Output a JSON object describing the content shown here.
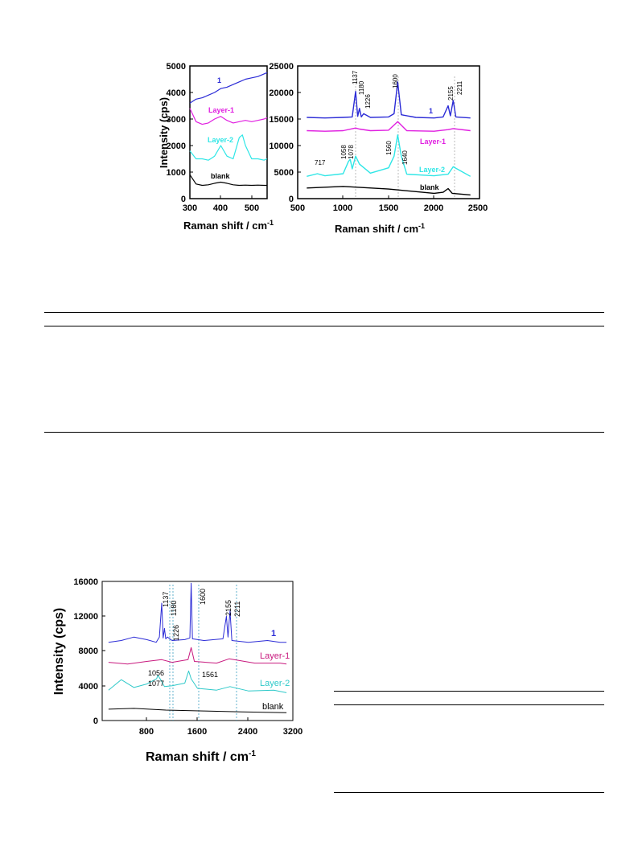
{
  "charts": {
    "top_left": {
      "ylabel": "Intensity (cps)",
      "xlabel": "Raman shift / cm",
      "xlabel_sup": "-1",
      "xlim": [
        300,
        550
      ],
      "ylim": [
        0,
        5000
      ],
      "xticks": [
        "300",
        "400",
        "500"
      ],
      "yticks": [
        "0",
        "1000",
        "2000",
        "3000",
        "4000",
        "5000"
      ],
      "labels": {
        "s1": "1",
        "layer1": "Layer-1",
        "layer2": "Layer-2",
        "blank": "blank"
      }
    },
    "top_right": {
      "xlabel": "Raman shift / cm",
      "xlabel_sup": "-1",
      "xlim": [
        500,
        2500
      ],
      "ylim": [
        0,
        25000
      ],
      "xticks": [
        "500",
        "1000",
        "1500",
        "2000",
        "2500"
      ],
      "yticks": [
        "0",
        "5000",
        "10000",
        "15000",
        "20000",
        "25000"
      ],
      "peak_labels": [
        "1137",
        "1180",
        "1226",
        "1600",
        "2155",
        "2211",
        "717",
        "1058",
        "1078",
        "1560",
        "1640"
      ],
      "labels": {
        "s1": "1",
        "layer1": "Layer-1",
        "layer2": "Layer-2",
        "blank": "blank"
      }
    },
    "bottom": {
      "ylabel": "Intensity (cps)",
      "xlabel": "Raman shift / cm",
      "xlabel_sup": "-1",
      "xlim": [
        200,
        3200
      ],
      "ylim": [
        0,
        16000
      ],
      "xticks": [
        "800",
        "1600",
        "2400",
        "3200"
      ],
      "yticks": [
        "0",
        "4000",
        "8000",
        "12000",
        "16000"
      ],
      "peak_labels": [
        "1137",
        "1180",
        "1226",
        "1600",
        "2155",
        "2211",
        "1056",
        "1077",
        "1561"
      ],
      "labels": {
        "s1": "1",
        "layer1": "Layer-1",
        "layer2": "Layer-2",
        "blank": "blank"
      }
    }
  },
  "chart_data": [
    {
      "type": "line",
      "xlabel": "Raman shift / cm-1",
      "ylabel": "Intensity (cps)",
      "xlim": [
        300,
        550
      ],
      "ylim": [
        0,
        5000
      ],
      "colors": {
        "1": "#2b2bd6",
        "Layer-1": "#e01ee0",
        "Layer-2": "#2ee6e6",
        "blank": "#000000"
      },
      "series": [
        {
          "name": "1",
          "x": [
            300,
            320,
            340,
            360,
            380,
            400,
            420,
            440,
            460,
            480,
            500,
            520,
            540,
            550
          ],
          "y": [
            3600,
            3750,
            3800,
            3900,
            4000,
            4150,
            4200,
            4300,
            4400,
            4500,
            4550,
            4600,
            4700,
            4750
          ]
        },
        {
          "name": "Layer-1",
          "x": [
            300,
            320,
            340,
            360,
            380,
            400,
            420,
            440,
            460,
            480,
            500,
            520,
            540,
            550
          ],
          "y": [
            3400,
            2900,
            2800,
            2850,
            3000,
            3100,
            2950,
            2850,
            2900,
            2950,
            2900,
            2950,
            3000,
            3050
          ]
        },
        {
          "name": "Layer-2",
          "x": [
            300,
            320,
            340,
            360,
            380,
            400,
            420,
            440,
            460,
            470,
            480,
            500,
            520,
            540,
            550
          ],
          "y": [
            1800,
            1500,
            1500,
            1450,
            1600,
            2000,
            1600,
            1500,
            2300,
            2400,
            2000,
            1500,
            1500,
            1450,
            1500
          ]
        },
        {
          "name": "blank",
          "x": [
            300,
            320,
            340,
            360,
            380,
            400,
            420,
            440,
            460,
            480,
            500,
            520,
            540,
            550
          ],
          "y": [
            900,
            550,
            500,
            520,
            580,
            620,
            580,
            520,
            500,
            510,
            500,
            510,
            500,
            500
          ]
        }
      ],
      "annotations": [
        "1",
        "Layer-1",
        "Layer-2",
        "blank"
      ]
    },
    {
      "type": "line",
      "xlabel": "Raman shift / cm-1",
      "xlim": [
        500,
        2500
      ],
      "ylim": [
        0,
        25000
      ],
      "colors": {
        "1": "#2b2bd6",
        "Layer-1": "#e01ee0",
        "Layer-2": "#2ee6e6",
        "blank": "#000000"
      },
      "series": [
        {
          "name": "1",
          "x": [
            600,
            800,
            1000,
            1100,
            1137,
            1160,
            1180,
            1200,
            1226,
            1300,
            1500,
            1560,
            1600,
            1640,
            1800,
            2000,
            2100,
            2155,
            2180,
            2211,
            2240,
            2400
          ],
          "y": [
            15300,
            15200,
            15300,
            15400,
            20200,
            15500,
            17000,
            15400,
            16000,
            15300,
            15400,
            16000,
            22000,
            15800,
            15300,
            15200,
            15400,
            17500,
            15600,
            18500,
            15400,
            15200
          ]
        },
        {
          "name": "Layer-1",
          "x": [
            600,
            800,
            1000,
            1137,
            1180,
            1300,
            1500,
            1600,
            1700,
            2000,
            2155,
            2211,
            2400
          ],
          "y": [
            12800,
            12700,
            12800,
            13300,
            13100,
            12800,
            12900,
            14500,
            12800,
            12700,
            13000,
            13200,
            12800
          ]
        },
        {
          "name": "Layer-2",
          "x": [
            600,
            717,
            800,
            1000,
            1058,
            1078,
            1100,
            1137,
            1180,
            1300,
            1500,
            1560,
            1600,
            1640,
            1700,
            2000,
            2155,
            2211,
            2400
          ],
          "y": [
            4200,
            4700,
            4300,
            4700,
            7000,
            7400,
            5600,
            8000,
            6500,
            4800,
            5800,
            8000,
            12000,
            8000,
            4600,
            4300,
            4600,
            6000,
            4200
          ]
        },
        {
          "name": "blank",
          "x": [
            600,
            1000,
            1500,
            2000,
            2100,
            2155,
            2200,
            2400
          ],
          "y": [
            2000,
            2300,
            1800,
            1000,
            1200,
            1900,
            1000,
            700
          ]
        }
      ],
      "peak_labels": [
        "1137",
        "1180",
        "1226",
        "1600",
        "2155",
        "2211",
        "717",
        "1058",
        "1078",
        "1560",
        "1640"
      ],
      "reference_lines_x": [
        1137,
        1600,
        2211
      ]
    },
    {
      "type": "line",
      "xlabel": "Raman shift / cm-1",
      "ylabel": "Intensity (cps)",
      "xlim": [
        200,
        3200
      ],
      "ylim": [
        0,
        16000
      ],
      "colors": {
        "1": "#2b2bd6",
        "Layer-1": "#c8197e",
        "Layer-2": "#2ec9c9",
        "blank": "#000000"
      },
      "series": [
        {
          "name": "1",
          "x": [
            300,
            500,
            700,
            900,
            1050,
            1100,
            1137,
            1160,
            1180,
            1200,
            1226,
            1300,
            1500,
            1580,
            1600,
            1620,
            1800,
            2100,
            2155,
            2180,
            2211,
            2240,
            2500,
            2800,
            3000,
            3100
          ],
          "y": [
            9000,
            9200,
            9600,
            9300,
            9000,
            9600,
            13500,
            9500,
            10600,
            9400,
            9600,
            9200,
            9300,
            9500,
            15800,
            9400,
            9200,
            9400,
            12000,
            9600,
            12600,
            9200,
            9000,
            9200,
            9000,
            9000
          ]
        },
        {
          "name": "Layer-1",
          "x": [
            300,
            600,
            900,
            1137,
            1300,
            1550,
            1600,
            1650,
            2000,
            2200,
            2600,
            3000,
            3100
          ],
          "y": [
            6700,
            6500,
            6800,
            7000,
            6700,
            7000,
            8400,
            6800,
            6600,
            7100,
            6600,
            6600,
            6500
          ]
        },
        {
          "name": "Layer-2",
          "x": [
            300,
            500,
            700,
            900,
            1056,
            1077,
            1137,
            1180,
            1300,
            1500,
            1561,
            1600,
            1700,
            2000,
            2211,
            2500,
            2900,
            3100
          ],
          "y": [
            3500,
            4700,
            3800,
            4200,
            4800,
            5200,
            4500,
            3900,
            4000,
            4300,
            5700,
            4800,
            3700,
            3500,
            3900,
            3400,
            3500,
            3200
          ]
        },
        {
          "name": "blank",
          "x": [
            300,
            700,
            1200,
            1800,
            2400,
            3100
          ],
          "y": [
            1300,
            1400,
            1200,
            1100,
            1000,
            900
          ]
        }
      ],
      "peak_labels": [
        "1137",
        "1180",
        "1226",
        "1600",
        "2155",
        "2211",
        "1056",
        "1077",
        "1561"
      ],
      "reference_lines_x": [
        1137,
        1180,
        1600,
        2211
      ]
    }
  ]
}
